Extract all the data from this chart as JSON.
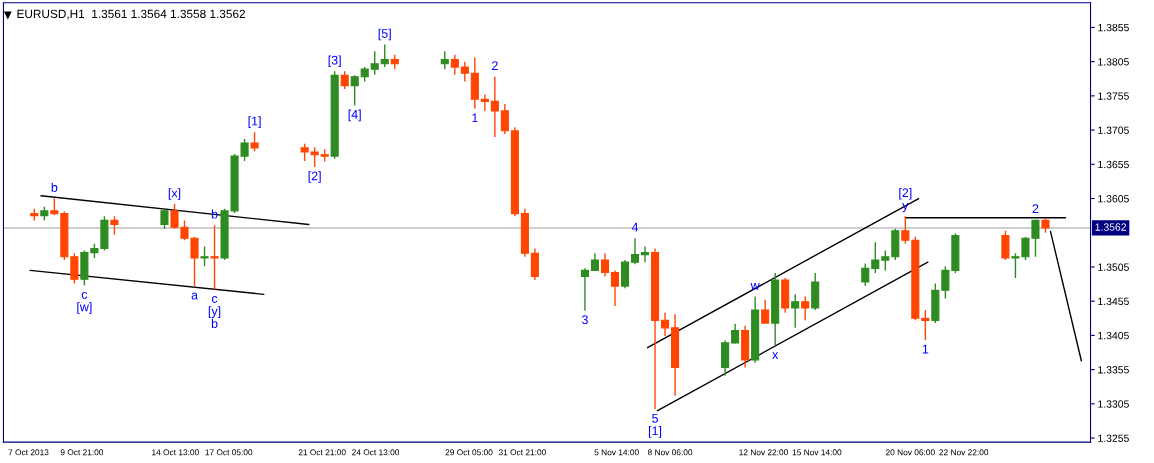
{
  "chart_data": {
    "type": "candlestick",
    "title": "EURUSD,H1  1.3561 1.3564 1.3558 1.3562",
    "x": [
      "2013-10-07T12:00",
      "2013-10-08T00:00",
      "2013-10-08T12:00",
      "2013-10-09T00:00",
      "2013-10-09T12:00",
      "2013-10-10T00:00",
      "2013-10-10T12:00",
      "2013-10-11T00:00",
      "2013-10-11T12:00",
      "2013-10-14T00:00",
      "2013-10-14T12:00",
      "2013-10-15T00:00",
      "2013-10-15T12:00",
      "2013-10-16T00:00",
      "2013-10-16T12:00",
      "2013-10-17T00:00",
      "2013-10-17T12:00",
      "2013-10-18T00:00",
      "2013-10-18T12:00",
      "2013-10-21T00:00",
      "2013-10-21T12:00",
      "2013-10-22T00:00",
      "2013-10-22T12:00",
      "2013-10-23T00:00",
      "2013-10-23T12:00",
      "2013-10-24T00:00",
      "2013-10-24T12:00",
      "2013-10-25T00:00",
      "2013-10-25T12:00",
      "2013-10-28T00:00",
      "2013-10-28T12:00",
      "2013-10-29T00:00",
      "2013-10-29T12:00",
      "2013-10-30T00:00",
      "2013-10-30T12:00",
      "2013-10-31T00:00",
      "2013-10-31T12:00",
      "2013-11-01T00:00",
      "2013-11-01T12:00",
      "2013-11-04T00:00",
      "2013-11-04T12:00",
      "2013-11-05T00:00",
      "2013-11-05T12:00",
      "2013-11-06T00:00",
      "2013-11-06T12:00",
      "2013-11-07T00:00",
      "2013-11-07T12:00",
      "2013-11-08T00:00",
      "2013-11-08T12:00",
      "2013-11-11T00:00",
      "2013-11-11T12:00",
      "2013-11-12T00:00",
      "2013-11-12T12:00",
      "2013-11-13T00:00",
      "2013-11-13T12:00",
      "2013-11-14T00:00",
      "2013-11-14T12:00",
      "2013-11-15T00:00",
      "2013-11-15T12:00",
      "2013-11-18T00:00",
      "2013-11-18T12:00",
      "2013-11-19T00:00",
      "2013-11-19T12:00",
      "2013-11-20T00:00",
      "2013-11-20T12:00",
      "2013-11-21T00:00",
      "2013-11-21T12:00",
      "2013-11-22T00:00",
      "2013-11-22T12:00",
      "2013-11-25T00:00",
      "2013-11-25T12:00",
      "2013-11-26T00:00",
      "2013-11-26T12:00",
      "2013-11-27T00:00"
    ],
    "ohlc": [
      [
        1.3583,
        1.359,
        1.3573,
        1.358
      ],
      [
        1.358,
        1.3593,
        1.3573,
        1.3587
      ],
      [
        1.3587,
        1.3605,
        1.3581,
        1.3583
      ],
      [
        1.3583,
        1.3586,
        1.3515,
        1.352
      ],
      [
        1.352,
        1.3525,
        1.3481,
        1.3487
      ],
      [
        1.3487,
        1.3529,
        1.3478,
        1.3526
      ],
      [
        1.3526,
        1.3539,
        1.3518,
        1.3532
      ],
      [
        1.3532,
        1.3579,
        1.3529,
        1.3573
      ],
      [
        1.3573,
        1.3579,
        1.3552,
        1.3567
      ],
      [
        1.3567,
        1.359,
        1.3561,
        1.3587
      ],
      [
        1.3587,
        1.3597,
        1.3561,
        1.3563
      ],
      [
        1.3563,
        1.3573,
        1.3544,
        1.3547
      ],
      [
        1.3547,
        1.3549,
        1.3477,
        1.3518
      ],
      [
        1.3518,
        1.3535,
        1.3506,
        1.352
      ],
      [
        1.352,
        1.3566,
        1.3472,
        1.3518
      ],
      [
        1.3518,
        1.359,
        1.3515,
        1.3587
      ],
      [
        1.3587,
        1.367,
        1.3584,
        1.3667
      ],
      [
        1.3667,
        1.3692,
        1.366,
        1.3686
      ],
      [
        1.3686,
        1.3702,
        1.3674,
        1.3679
      ],
      [
        1.3679,
        1.3685,
        1.366,
        1.3673
      ],
      [
        1.3673,
        1.368,
        1.3651,
        1.3669
      ],
      [
        1.3669,
        1.3677,
        1.3659,
        1.3667
      ],
      [
        1.3667,
        1.3791,
        1.3663,
        1.3785
      ],
      [
        1.3785,
        1.3791,
        1.3765,
        1.377
      ],
      [
        1.377,
        1.3785,
        1.3741,
        1.3783
      ],
      [
        1.3783,
        1.3797,
        1.3776,
        1.3794
      ],
      [
        1.3794,
        1.382,
        1.3786,
        1.3802
      ],
      [
        1.3802,
        1.383,
        1.3797,
        1.3808
      ],
      [
        1.3808,
        1.3815,
        1.3794,
        1.3802
      ],
      [
        1.3802,
        1.382,
        1.3794,
        1.3808
      ],
      [
        1.3808,
        1.3815,
        1.3786,
        1.3797
      ],
      [
        1.3797,
        1.3805,
        1.3776,
        1.3788
      ],
      [
        1.3788,
        1.3811,
        1.3736,
        1.375
      ],
      [
        1.375,
        1.3757,
        1.3733,
        1.3747
      ],
      [
        1.3747,
        1.3783,
        1.3695,
        1.3733
      ],
      [
        1.3733,
        1.3743,
        1.3699,
        1.3704
      ],
      [
        1.3704,
        1.3709,
        1.3579,
        1.3583
      ],
      [
        1.3583,
        1.359,
        1.352,
        1.3525
      ],
      [
        1.3525,
        1.3532,
        1.3486,
        1.3491
      ],
      [
        1.3491,
        1.3503,
        1.3441,
        1.35
      ],
      [
        1.35,
        1.3525,
        1.35,
        1.3515
      ],
      [
        1.3515,
        1.3525,
        1.3491,
        1.3497
      ],
      [
        1.3497,
        1.35,
        1.3448,
        1.3477
      ],
      [
        1.3477,
        1.3515,
        1.3474,
        1.3512
      ],
      [
        1.3512,
        1.3547,
        1.3509,
        1.3523
      ],
      [
        1.3523,
        1.3535,
        1.3512,
        1.3526
      ],
      [
        1.3526,
        1.3532,
        1.3297,
        1.3427
      ],
      [
        1.3427,
        1.3438,
        1.3404,
        1.3416
      ],
      [
        1.3416,
        1.3436,
        1.3317,
        1.3358
      ],
      [
        1.3358,
        1.3398,
        1.3346,
        1.3394
      ],
      [
        1.3394,
        1.3422,
        1.3393,
        1.3412
      ],
      [
        1.3412,
        1.3419,
        1.3358,
        1.3369
      ],
      [
        1.3369,
        1.3462,
        1.3365,
        1.3442
      ],
      [
        1.3442,
        1.3457,
        1.3423,
        1.3423
      ],
      [
        1.3423,
        1.3496,
        1.339,
        1.3486
      ],
      [
        1.3486,
        1.3489,
        1.3438,
        1.3445
      ],
      [
        1.3445,
        1.3465,
        1.3416,
        1.3454
      ],
      [
        1.3454,
        1.3462,
        1.3427,
        1.3445
      ],
      [
        1.3445,
        1.3496,
        1.3442,
        1.3483
      ],
      [
        1.3483,
        1.351,
        1.3477,
        1.3503
      ],
      [
        1.3503,
        1.3541,
        1.3496,
        1.3515
      ],
      [
        1.3515,
        1.3529,
        1.35,
        1.352
      ],
      [
        1.352,
        1.3561,
        1.3515,
        1.3558
      ],
      [
        1.3558,
        1.3579,
        1.3539,
        1.3544
      ],
      [
        1.3544,
        1.3549,
        1.3427,
        1.343
      ],
      [
        1.343,
        1.3442,
        1.3398,
        1.3427
      ],
      [
        1.3427,
        1.3481,
        1.3423,
        1.3471
      ],
      [
        1.3471,
        1.3506,
        1.3459,
        1.35
      ],
      [
        1.35,
        1.3554,
        1.3496,
        1.3551
      ],
      [
        1.3551,
        1.3558,
        1.3515,
        1.3518
      ],
      [
        1.3518,
        1.3525,
        1.3489,
        1.352
      ],
      [
        1.352,
        1.3549,
        1.3515,
        1.3547
      ],
      [
        1.3547,
        1.3574,
        1.352,
        1.3573
      ],
      [
        1.3573,
        1.3576,
        1.3555,
        1.3562
      ]
    ],
    "series": [
      {
        "type": "line",
        "color": "#000000",
        "x": [
          "2013-10-07T20:00",
          "2013-10-21T05:00"
        ],
        "values": [
          1.3609,
          1.3567
        ]
      },
      {
        "type": "line",
        "color": "#000000",
        "x": [
          "2013-10-07T07:00",
          "2013-10-18T23:00"
        ],
        "values": [
          1.35,
          1.3465
        ]
      },
      {
        "type": "line",
        "color": "#000000",
        "x": [
          "2013-11-07T03:00",
          "2013-11-20T16:00"
        ],
        "values": [
          1.3387,
          1.3605
        ]
      },
      {
        "type": "line",
        "color": "#000000",
        "x": [
          "2013-11-07T15:00",
          "2013-11-21T03:00"
        ],
        "values": [
          1.3295,
          1.3512
        ]
      },
      {
        "type": "line",
        "color": "#000000",
        "x": [
          "2013-11-20T00:00",
          "2013-11-28T00:00"
        ],
        "values": [
          1.3577,
          1.3577
        ]
      },
      {
        "type": "line",
        "color": "#000000",
        "x": [
          "2013-11-27T06:00",
          "2013-11-28T19:00"
        ],
        "values": [
          1.3557,
          1.3368
        ]
      }
    ],
    "annotations": [
      {
        "text": "b",
        "x": "2013-10-08T12:00",
        "y": 1.3605
      },
      {
        "text": "c\n[w]",
        "x": "2013-10-10T00:00",
        "y": 1.3478
      },
      {
        "text": "[x]",
        "x": "2013-10-14T12:00",
        "y": 1.3597
      },
      {
        "text": "a",
        "x": "2013-10-15T12:00",
        "y": 1.3477
      },
      {
        "text": "b",
        "x": "2013-10-16T12:00",
        "y": 1.3566
      },
      {
        "text": "c\n[y]\nb",
        "x": "2013-10-16T12:00",
        "y": 1.3472
      },
      {
        "text": "[1]",
        "x": "2013-10-18T12:00",
        "y": 1.3702
      },
      {
        "text": "[2]",
        "x": "2013-10-21T12:00",
        "y": 1.3651
      },
      {
        "text": "[3]",
        "x": "2013-10-22T12:00",
        "y": 1.3791
      },
      {
        "text": "[4]",
        "x": "2013-10-23T12:00",
        "y": 1.3741
      },
      {
        "text": "[5]",
        "x": "2013-10-25T00:00",
        "y": 1.383
      },
      {
        "text": "1",
        "x": "2013-10-29T12:00",
        "y": 1.3736
      },
      {
        "text": "2",
        "x": "2013-10-30T12:00",
        "y": 1.3783
      },
      {
        "text": "3",
        "x": "2013-11-04T00:00",
        "y": 1.3441
      },
      {
        "text": "4",
        "x": "2013-11-06T12:00",
        "y": 1.3547
      },
      {
        "text": "5\n[1]",
        "x": "2013-11-07T12:00",
        "y": 1.3297
      },
      {
        "text": "w",
        "x": "2013-11-12T12:00",
        "y": 1.3462
      },
      {
        "text": "x",
        "x": "2013-11-13T12:00",
        "y": 1.339
      },
      {
        "text": "[2]\ny",
        "x": "2013-11-20T00:00",
        "y": 1.3579
      },
      {
        "text": "1",
        "x": "2013-11-21T00:00",
        "y": 1.3398
      },
      {
        "text": "2",
        "x": "2013-11-26T12:00",
        "y": 1.3574
      }
    ],
    "ref_lines": [
      {
        "axis": "y",
        "value": 1.3562,
        "label": "1.3562",
        "color": "#c0c0c0"
      }
    ],
    "xlim": [
      "2013-10-05T23:00",
      "2013-11-29T06:00"
    ],
    "ylim": [
      1.3249,
      1.3891
    ],
    "xticks": [
      {
        "value": "2013-10-07T05:00",
        "label": "7 Oct 2013"
      },
      {
        "value": "2013-10-09T21:00",
        "label": "9 Oct 21:00"
      },
      {
        "value": "2013-10-14T13:00",
        "label": "14 Oct 13:00"
      },
      {
        "value": "2013-10-17T05:00",
        "label": "17 Oct 05:00"
      },
      {
        "value": "2013-10-21T21:00",
        "label": "21 Oct 21:00"
      },
      {
        "value": "2013-10-24T13:00",
        "label": "24 Oct 13:00"
      },
      {
        "value": "2013-10-29T05:00",
        "label": "29 Oct 05:00"
      },
      {
        "value": "2013-10-31T21:00",
        "label": "31 Oct 21:00"
      },
      {
        "value": "2013-11-05T14:00",
        "label": "5 Nov 14:00"
      },
      {
        "value": "2013-11-08T06:00",
        "label": "8 Nov 06:00"
      },
      {
        "value": "2013-11-12T22:00",
        "label": "12 Nov 22:00"
      },
      {
        "value": "2013-11-15T14:00",
        "label": "15 Nov 14:00"
      },
      {
        "value": "2013-11-20T06:00",
        "label": "20 Nov 06:00"
      },
      {
        "value": "2013-11-22T22:00",
        "label": "22 Nov 22:00"
      }
    ],
    "yticks": [
      {
        "value": 1.3255,
        "label": "1.3255"
      },
      {
        "value": 1.3305,
        "label": "1.3305"
      },
      {
        "value": 1.3355,
        "label": "1.3355"
      },
      {
        "value": 1.3405,
        "label": "1.3405"
      },
      {
        "value": 1.3455,
        "label": "1.3455"
      },
      {
        "value": 1.3505,
        "label": "1.3505"
      },
      {
        "value": 1.3605,
        "label": "1.3605"
      },
      {
        "value": 1.3655,
        "label": "1.3655"
      },
      {
        "value": 1.3705,
        "label": "1.3705"
      },
      {
        "value": 1.3755,
        "label": "1.3755"
      },
      {
        "value": 1.3805,
        "label": "1.3805"
      },
      {
        "value": 1.3855,
        "label": "1.3855"
      }
    ],
    "grid": false
  }
}
